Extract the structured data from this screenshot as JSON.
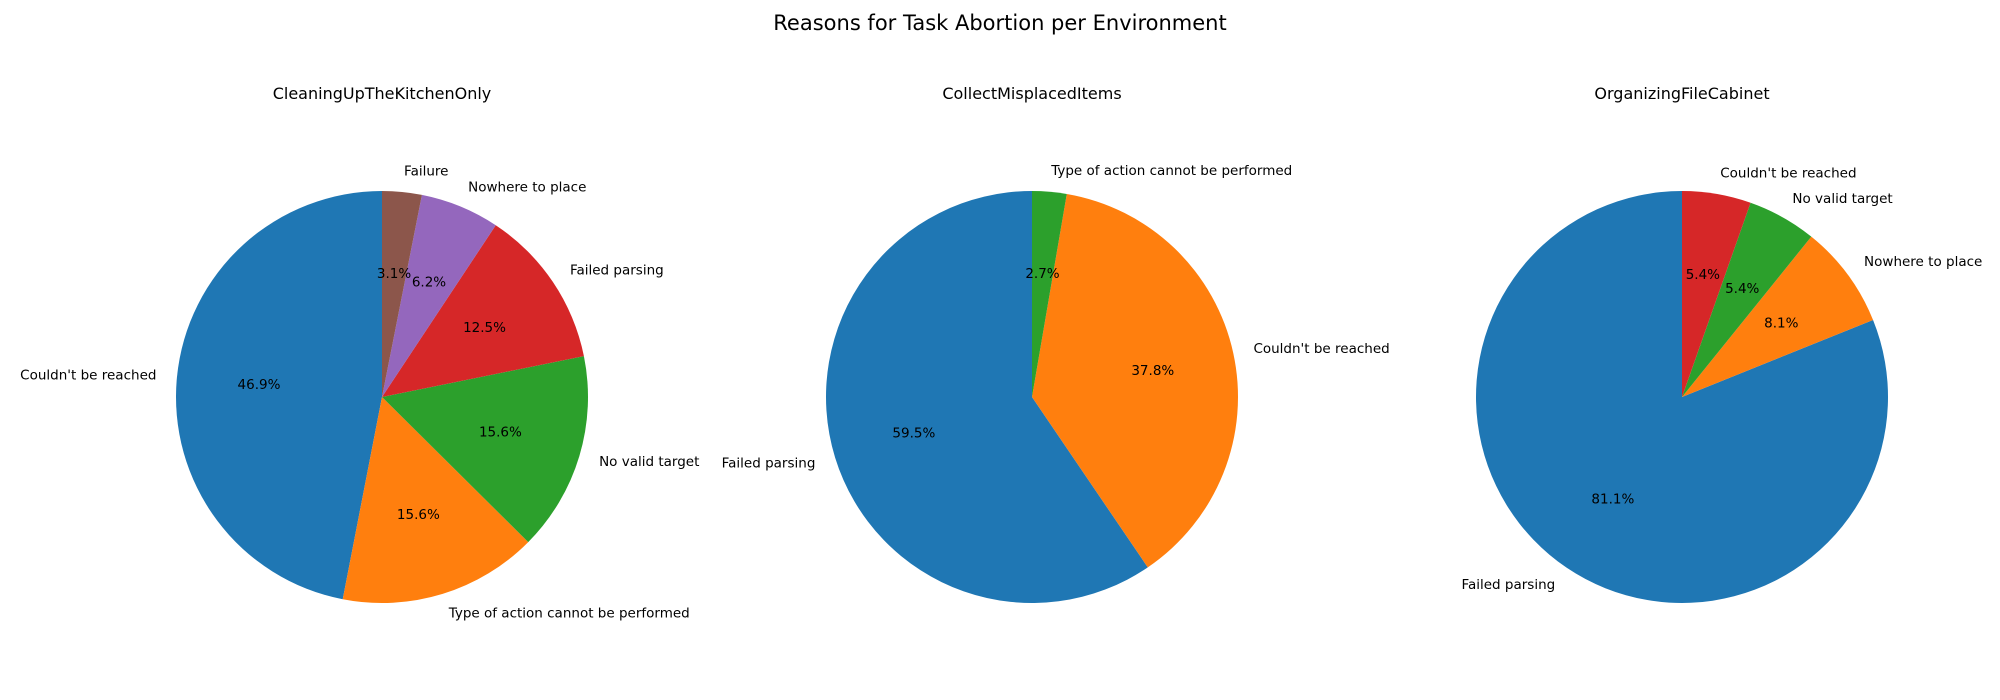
{
  "figure_title": "Reasons for Task Abortion per Environment",
  "chart_data": [
    {
      "type": "pie",
      "title": "CleaningUpTheKitchenOnly",
      "start_angle": 90,
      "direction": "counterclockwise",
      "slices": [
        {
          "label": "Couldn't be reached",
          "value": 46.9,
          "pct": "46.9%",
          "color": "#1f77b4"
        },
        {
          "label": "Type of action cannot be performed",
          "value": 15.6,
          "pct": "15.6%",
          "color": "#ff7f0e"
        },
        {
          "label": "No valid target",
          "value": 15.6,
          "pct": "15.6%",
          "color": "#2ca02c"
        },
        {
          "label": "Failed parsing",
          "value": 12.5,
          "pct": "12.5%",
          "color": "#d62728"
        },
        {
          "label": "Nowhere to place",
          "value": 6.2,
          "pct": "6.2%",
          "color": "#9467bd"
        },
        {
          "label": "Failure",
          "value": 3.1,
          "pct": "3.1%",
          "color": "#8c564b"
        }
      ]
    },
    {
      "type": "pie",
      "title": "CollectMisplacedItems",
      "start_angle": 90,
      "direction": "counterclockwise",
      "slices": [
        {
          "label": "Failed parsing",
          "value": 59.5,
          "pct": "59.5%",
          "color": "#1f77b4"
        },
        {
          "label": "Couldn't be reached",
          "value": 37.8,
          "pct": "37.8%",
          "color": "#ff7f0e"
        },
        {
          "label": "Type of action cannot be performed",
          "value": 2.7,
          "pct": "2.7%",
          "color": "#2ca02c"
        }
      ]
    },
    {
      "type": "pie",
      "title": "OrganizingFileCabinet",
      "start_angle": 90,
      "direction": "counterclockwise",
      "slices": [
        {
          "label": "Failed parsing",
          "value": 81.1,
          "pct": "81.1%",
          "color": "#1f77b4"
        },
        {
          "label": "Nowhere to place",
          "value": 8.1,
          "pct": "8.1%",
          "color": "#ff7f0e"
        },
        {
          "label": "No valid target",
          "value": 5.4,
          "pct": "5.4%",
          "color": "#2ca02c"
        },
        {
          "label": "Couldn't be reached",
          "value": 5.4,
          "pct": "5.4%",
          "color": "#d62728"
        }
      ]
    }
  ]
}
